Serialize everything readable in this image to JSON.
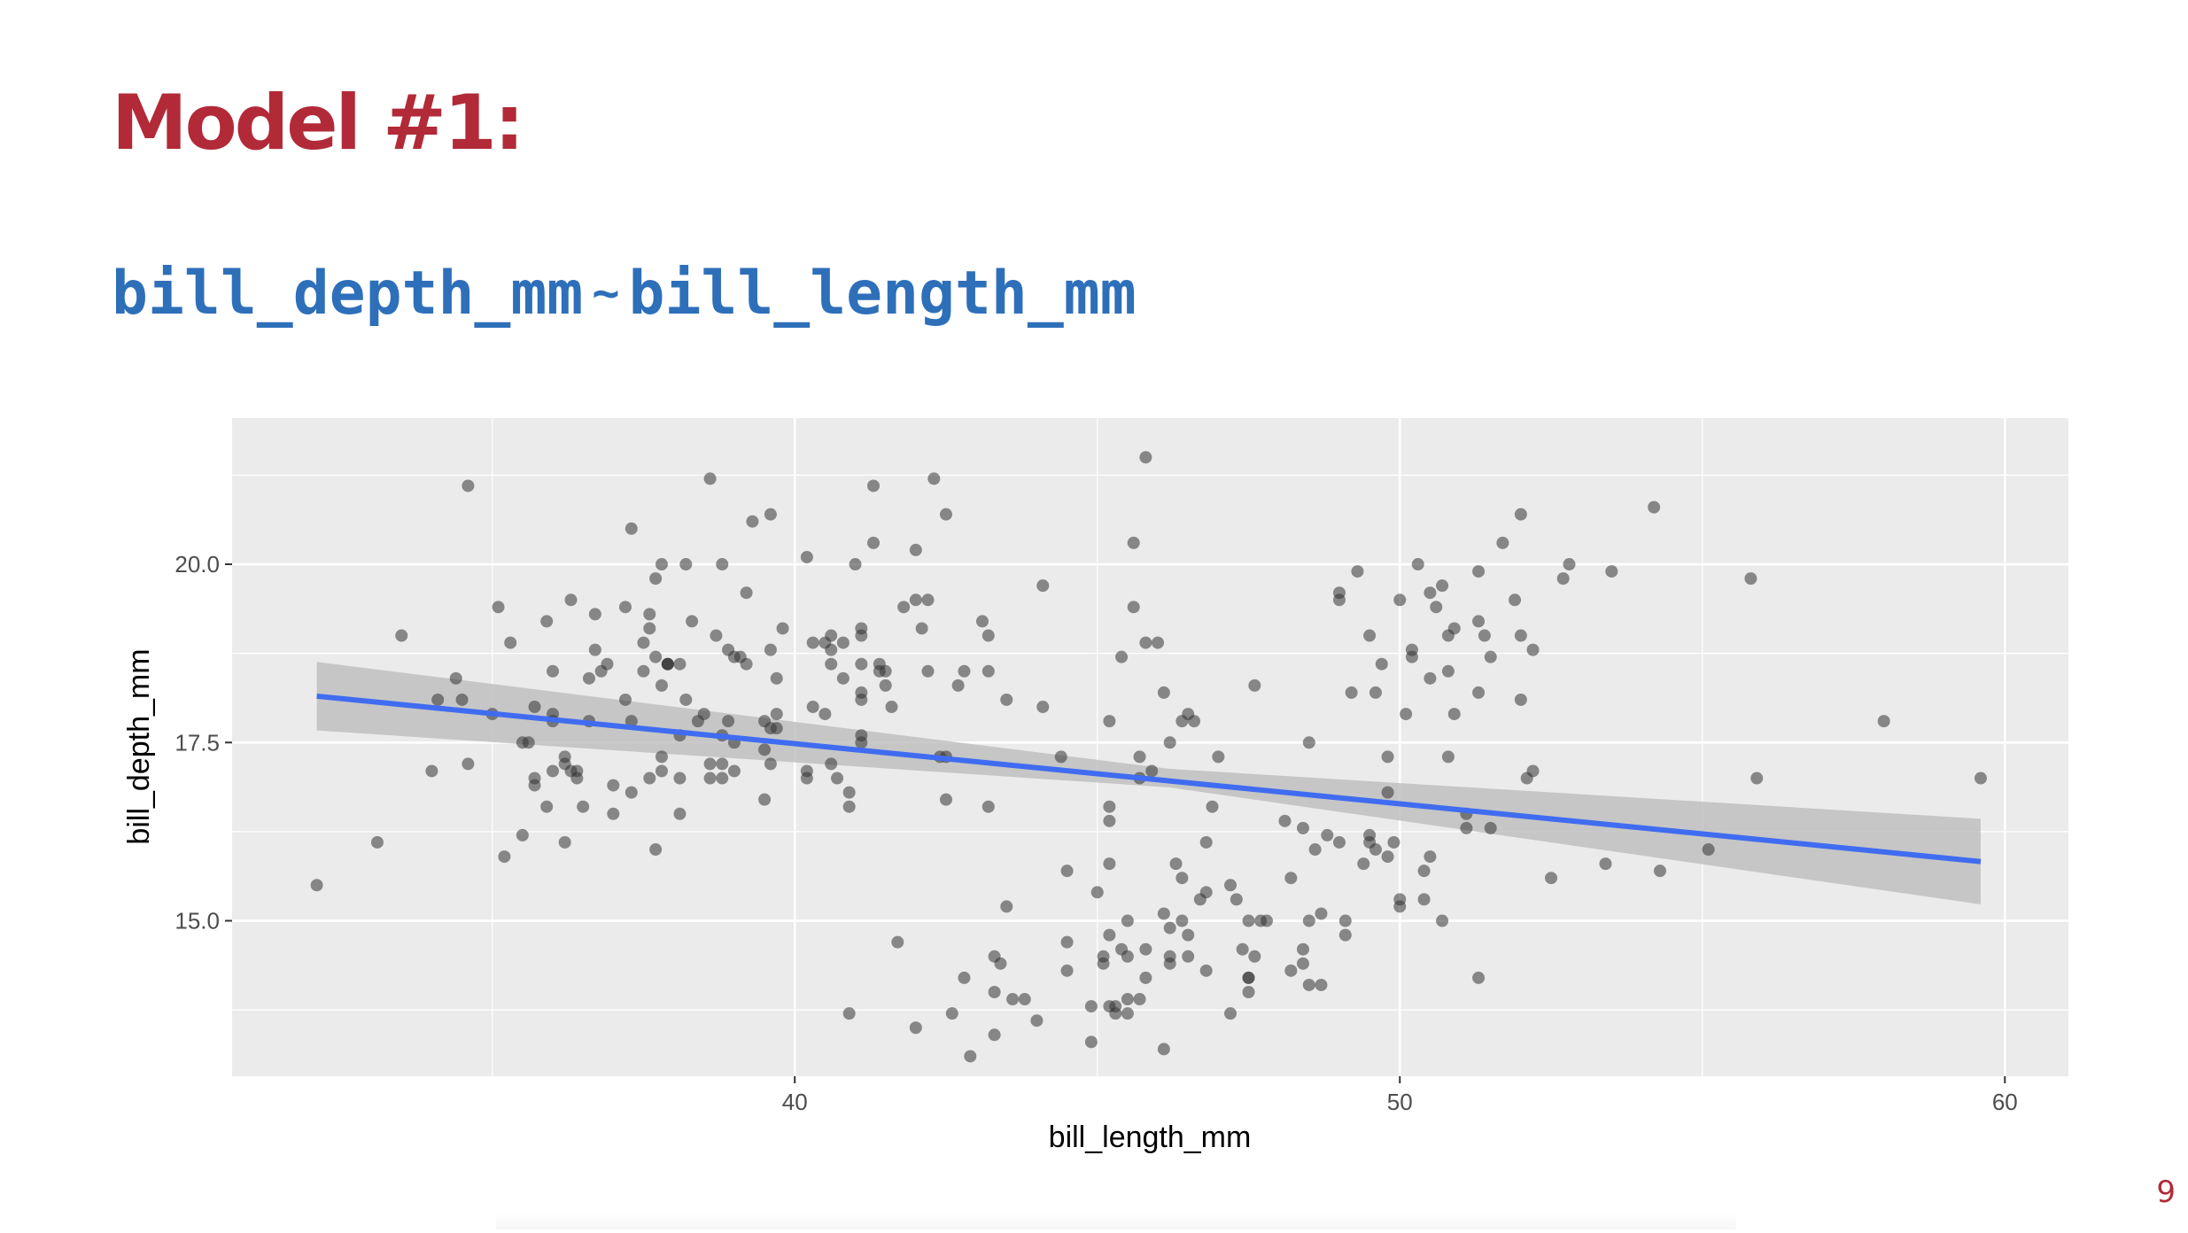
{
  "slide": {
    "title": "Model #1:",
    "formula_response": "bill_depth_mm",
    "formula_tilde": "~",
    "formula_predictor": "bill_length_mm",
    "page_number": "9"
  },
  "colors": {
    "title": "#b22a38",
    "formula": "#2e6fba",
    "page_number": "#b22a38",
    "panel_bg": "#ebebeb",
    "gridline": "#ffffff",
    "point": "#333333",
    "fit_line": "#3f6cf0",
    "ribbon": "#bdbdbd"
  },
  "chart_data": {
    "type": "scatter",
    "title": "",
    "xlabel": "bill_length_mm",
    "ylabel": "bill_depth_mm",
    "xlim": [
      30.7,
      61.05
    ],
    "ylim": [
      12.82,
      22.05
    ],
    "x_ticks": [
      40,
      50,
      60
    ],
    "x_tick_labels": [
      "40",
      "50",
      "60"
    ],
    "y_ticks": [
      15.0,
      17.5,
      20.0
    ],
    "y_tick_labels": [
      "15.0",
      "17.5",
      "20.0"
    ],
    "grid": true,
    "legend": "none",
    "points": [
      [
        32.1,
        15.5
      ],
      [
        33.1,
        16.1
      ],
      [
        33.5,
        19.0
      ],
      [
        34.0,
        17.1
      ],
      [
        34.1,
        18.1
      ],
      [
        34.4,
        18.4
      ],
      [
        34.5,
        18.1
      ],
      [
        34.6,
        21.1
      ],
      [
        34.6,
        17.2
      ],
      [
        35.0,
        17.9
      ],
      [
        35.1,
        19.4
      ],
      [
        35.2,
        15.9
      ],
      [
        35.3,
        18.9
      ],
      [
        35.5,
        17.5
      ],
      [
        35.5,
        16.2
      ],
      [
        35.6,
        17.5
      ],
      [
        35.7,
        17.0
      ],
      [
        35.7,
        16.9
      ],
      [
        35.7,
        18.0
      ],
      [
        35.9,
        19.2
      ],
      [
        36.0,
        18.5
      ],
      [
        36.0,
        17.9
      ],
      [
        36.0,
        17.1
      ],
      [
        36.0,
        17.8
      ],
      [
        35.9,
        16.6
      ],
      [
        36.2,
        17.3
      ],
      [
        36.2,
        16.1
      ],
      [
        36.2,
        17.2
      ],
      [
        36.3,
        19.5
      ],
      [
        36.4,
        17.0
      ],
      [
        36.4,
        17.1
      ],
      [
        36.5,
        16.6
      ],
      [
        36.6,
        18.4
      ],
      [
        36.7,
        19.3
      ],
      [
        36.7,
        18.8
      ],
      [
        36.8,
        18.5
      ],
      [
        36.9,
        18.6
      ],
      [
        37.0,
        16.9
      ],
      [
        37.0,
        16.5
      ],
      [
        37.2,
        18.1
      ],
      [
        37.2,
        19.4
      ],
      [
        37.3,
        17.8
      ],
      [
        37.3,
        20.5
      ],
      [
        37.3,
        16.8
      ],
      [
        37.5,
        18.9
      ],
      [
        37.5,
        18.5
      ],
      [
        37.6,
        17.0
      ],
      [
        37.6,
        19.3
      ],
      [
        37.6,
        19.1
      ],
      [
        37.7,
        18.7
      ],
      [
        37.7,
        16.0
      ],
      [
        37.7,
        19.8
      ],
      [
        37.8,
        17.3
      ],
      [
        37.8,
        18.3
      ],
      [
        37.8,
        17.1
      ],
      [
        37.8,
        20.0
      ],
      [
        37.9,
        18.6
      ],
      [
        37.9,
        18.6
      ],
      [
        38.1,
        18.6
      ],
      [
        38.1,
        17.0
      ],
      [
        38.1,
        16.5
      ],
      [
        38.1,
        17.6
      ],
      [
        38.2,
        18.1
      ],
      [
        38.2,
        20.0
      ],
      [
        38.3,
        19.2
      ],
      [
        38.5,
        17.9
      ],
      [
        38.6,
        21.2
      ],
      [
        38.6,
        17.2
      ],
      [
        38.6,
        17.0
      ],
      [
        38.7,
        19.0
      ],
      [
        38.8,
        17.2
      ],
      [
        38.8,
        20.0
      ],
      [
        38.8,
        17.6
      ],
      [
        38.9,
        18.8
      ],
      [
        38.9,
        17.8
      ],
      [
        39.0,
        18.7
      ],
      [
        39.0,
        17.5
      ],
      [
        39.0,
        17.1
      ],
      [
        39.1,
        18.7
      ],
      [
        39.2,
        19.6
      ],
      [
        39.2,
        18.6
      ],
      [
        39.3,
        20.6
      ],
      [
        39.5,
        17.4
      ],
      [
        39.5,
        16.7
      ],
      [
        39.5,
        17.8
      ],
      [
        39.6,
        18.8
      ],
      [
        39.6,
        17.7
      ],
      [
        39.6,
        17.2
      ],
      [
        39.6,
        20.7
      ],
      [
        39.7,
        18.4
      ],
      [
        39.7,
        17.9
      ],
      [
        39.7,
        17.7
      ],
      [
        39.8,
        19.1
      ],
      [
        40.2,
        17.0
      ],
      [
        40.2,
        20.1
      ],
      [
        40.2,
        17.1
      ],
      [
        40.3,
        18.0
      ],
      [
        40.3,
        18.9
      ],
      [
        40.5,
        17.9
      ],
      [
        40.5,
        18.9
      ],
      [
        40.6,
        18.6
      ],
      [
        40.6,
        18.8
      ],
      [
        40.6,
        19.0
      ],
      [
        40.6,
        17.2
      ],
      [
        40.7,
        17.0
      ],
      [
        40.8,
        18.4
      ],
      [
        40.8,
        18.9
      ],
      [
        40.9,
        16.8
      ],
      [
        40.9,
        16.6
      ],
      [
        41.0,
        20.0
      ],
      [
        41.1,
        18.6
      ],
      [
        41.1,
        19.0
      ],
      [
        41.1,
        18.1
      ],
      [
        41.1,
        17.6
      ],
      [
        41.1,
        18.2
      ],
      [
        41.1,
        17.5
      ],
      [
        41.1,
        19.1
      ],
      [
        41.3,
        20.3
      ],
      [
        41.3,
        21.1
      ],
      [
        41.4,
        18.6
      ],
      [
        41.4,
        18.5
      ],
      [
        41.5,
        18.3
      ],
      [
        41.5,
        18.5
      ],
      [
        41.6,
        18.0
      ],
      [
        41.7,
        14.7
      ],
      [
        41.8,
        19.4
      ],
      [
        42.0,
        20.2
      ],
      [
        42.0,
        19.5
      ],
      [
        42.1,
        19.1
      ],
      [
        42.2,
        18.5
      ],
      [
        42.2,
        19.5
      ],
      [
        42.3,
        21.2
      ],
      [
        42.5,
        17.3
      ],
      [
        42.5,
        16.7
      ],
      [
        42.5,
        20.7
      ],
      [
        42.4,
        17.3
      ],
      [
        42.6,
        13.7
      ],
      [
        42.7,
        18.3
      ],
      [
        42.8,
        14.2
      ],
      [
        42.8,
        18.5
      ],
      [
        42.9,
        13.1
      ],
      [
        43.1,
        19.2
      ],
      [
        43.2,
        18.5
      ],
      [
        43.2,
        19.0
      ],
      [
        43.2,
        16.6
      ],
      [
        43.3,
        14.0
      ],
      [
        43.3,
        13.4
      ],
      [
        43.4,
        14.4
      ],
      [
        43.5,
        15.2
      ],
      [
        43.5,
        18.1
      ],
      [
        43.6,
        13.9
      ],
      [
        43.8,
        13.9
      ],
      [
        44.0,
        13.6
      ],
      [
        44.1,
        18.0
      ],
      [
        44.1,
        19.7
      ],
      [
        44.4,
        17.3
      ],
      [
        44.5,
        15.7
      ],
      [
        44.5,
        14.3
      ],
      [
        44.5,
        14.7
      ],
      [
        44.9,
        13.8
      ],
      [
        44.9,
        13.3
      ],
      [
        45.0,
        15.4
      ],
      [
        45.1,
        14.5
      ],
      [
        45.1,
        14.4
      ],
      [
        45.2,
        16.6
      ],
      [
        45.2,
        17.8
      ],
      [
        45.2,
        13.8
      ],
      [
        45.2,
        15.8
      ],
      [
        45.2,
        16.4
      ],
      [
        45.2,
        14.8
      ],
      [
        45.3,
        13.7
      ],
      [
        45.3,
        13.8
      ],
      [
        45.4,
        18.7
      ],
      [
        45.4,
        14.6
      ],
      [
        45.5,
        15.0
      ],
      [
        45.5,
        13.7
      ],
      [
        45.5,
        14.5
      ],
      [
        45.5,
        13.9
      ],
      [
        45.6,
        19.4
      ],
      [
        45.6,
        20.3
      ],
      [
        45.7,
        17.3
      ],
      [
        45.7,
        17.0
      ],
      [
        45.7,
        13.9
      ],
      [
        45.8,
        14.6
      ],
      [
        45.8,
        14.2
      ],
      [
        45.8,
        18.9
      ],
      [
        45.9,
        17.1
      ],
      [
        46.1,
        18.2
      ],
      [
        46.1,
        13.2
      ],
      [
        46.1,
        15.1
      ],
      [
        46.2,
        14.4
      ],
      [
        46.2,
        14.9
      ],
      [
        46.2,
        17.5
      ],
      [
        46.2,
        14.5
      ],
      [
        46.3,
        15.8
      ],
      [
        46.4,
        15.0
      ],
      [
        46.4,
        17.8
      ],
      [
        46.4,
        15.6
      ],
      [
        46.5,
        17.9
      ],
      [
        46.5,
        14.5
      ],
      [
        46.5,
        14.8
      ],
      [
        46.6,
        17.8
      ],
      [
        46.7,
        15.3
      ],
      [
        46.8,
        15.4
      ],
      [
        46.8,
        14.3
      ],
      [
        46.8,
        16.1
      ],
      [
        46.9,
        16.6
      ],
      [
        47.0,
        17.3
      ],
      [
        47.2,
        15.5
      ],
      [
        47.2,
        13.7
      ],
      [
        47.3,
        15.3
      ],
      [
        47.4,
        14.6
      ],
      [
        47.5,
        15.0
      ],
      [
        47.5,
        14.2
      ],
      [
        47.5,
        14.0
      ],
      [
        47.6,
        18.3
      ],
      [
        47.6,
        14.5
      ],
      [
        47.7,
        15.0
      ],
      [
        47.8,
        15.0
      ],
      [
        48.1,
        16.4
      ],
      [
        48.2,
        14.3
      ],
      [
        48.2,
        15.6
      ],
      [
        48.4,
        14.6
      ],
      [
        48.4,
        16.3
      ],
      [
        48.4,
        14.4
      ],
      [
        48.5,
        17.5
      ],
      [
        48.5,
        14.1
      ],
      [
        48.5,
        15.0
      ],
      [
        48.6,
        16.0
      ],
      [
        48.7,
        15.1
      ],
      [
        48.7,
        14.1
      ],
      [
        48.8,
        16.2
      ],
      [
        49.0,
        19.6
      ],
      [
        49.0,
        19.5
      ],
      [
        49.0,
        16.1
      ],
      [
        49.1,
        15.0
      ],
      [
        49.1,
        14.8
      ],
      [
        49.2,
        18.2
      ],
      [
        49.3,
        19.9
      ],
      [
        49.4,
        15.8
      ],
      [
        49.5,
        19.0
      ],
      [
        49.5,
        16.1
      ],
      [
        49.5,
        16.2
      ],
      [
        49.6,
        18.2
      ],
      [
        49.6,
        16.0
      ],
      [
        49.7,
        18.6
      ],
      [
        49.8,
        17.3
      ],
      [
        49.8,
        16.8
      ],
      [
        49.8,
        15.9
      ],
      [
        50.0,
        19.5
      ],
      [
        50.0,
        15.3
      ],
      [
        50.0,
        15.2
      ],
      [
        50.1,
        17.9
      ],
      [
        50.2,
        18.8
      ],
      [
        50.2,
        18.7
      ],
      [
        50.3,
        20.0
      ],
      [
        50.4,
        15.7
      ],
      [
        50.4,
        15.3
      ],
      [
        50.5,
        19.6
      ],
      [
        50.5,
        18.4
      ],
      [
        50.5,
        15.9
      ],
      [
        50.6,
        19.4
      ],
      [
        50.7,
        19.7
      ],
      [
        50.7,
        15.0
      ],
      [
        50.8,
        17.3
      ],
      [
        50.8,
        18.5
      ],
      [
        50.8,
        19.0
      ],
      [
        50.9,
        19.1
      ],
      [
        50.9,
        17.9
      ],
      [
        51.1,
        16.5
      ],
      [
        51.1,
        16.3
      ],
      [
        51.3,
        19.9
      ],
      [
        51.3,
        19.2
      ],
      [
        51.3,
        18.2
      ],
      [
        51.3,
        14.2
      ],
      [
        51.4,
        19.0
      ],
      [
        51.5,
        18.7
      ],
      [
        51.5,
        16.3
      ],
      [
        51.7,
        20.3
      ],
      [
        51.9,
        19.5
      ],
      [
        52.0,
        20.7
      ],
      [
        52.0,
        18.1
      ],
      [
        52.0,
        19.0
      ],
      [
        52.1,
        17.0
      ],
      [
        52.2,
        18.8
      ],
      [
        52.2,
        17.1
      ],
      [
        52.5,
        15.6
      ],
      [
        52.7,
        19.8
      ],
      [
        52.8,
        20.0
      ],
      [
        53.4,
        15.8
      ],
      [
        53.5,
        19.9
      ],
      [
        54.2,
        20.8
      ],
      [
        54.3,
        15.7
      ],
      [
        55.1,
        16.0
      ],
      [
        55.8,
        19.8
      ],
      [
        55.9,
        17.0
      ],
      [
        58.0,
        17.8
      ],
      [
        59.6,
        17.0
      ],
      [
        45.8,
        21.5
      ],
      [
        42.0,
        13.5
      ],
      [
        40.9,
        13.7
      ],
      [
        43.3,
        14.5
      ],
      [
        46.0,
        18.9
      ],
      [
        38.8,
        17.0
      ],
      [
        36.6,
        17.8
      ],
      [
        36.3,
        17.1
      ],
      [
        37.9,
        18.6
      ],
      [
        38.4,
        17.8
      ],
      [
        47.5,
        14.2
      ],
      [
        49.9,
        16.1
      ]
    ],
    "fit_line": {
      "x": [
        32.1,
        59.6
      ],
      "y": [
        18.15,
        15.83
      ]
    },
    "confidence_band": {
      "x": [
        32.1,
        46.2,
        59.6
      ],
      "lower": [
        17.67,
        16.87,
        15.23
      ],
      "upper": [
        18.63,
        17.13,
        16.43
      ]
    }
  }
}
